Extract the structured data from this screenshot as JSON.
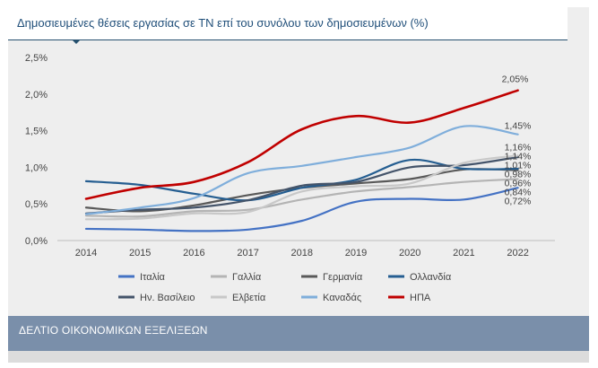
{
  "header": {
    "title": "Δημοσιευμένες θέσεις εργασίας σε ΤΝ επί του συνόλου των δημοσιευμένων (%)"
  },
  "footer": {
    "label": "ΔΕΛΤΙΟ ΟΙΚΟΝΟΜΙΚΩΝ ΕΞΕΛΙΞΕΩΝ"
  },
  "chart_data": {
    "type": "line",
    "title": "Δημοσιευμένες θέσεις εργασίας σε ΤΝ επί του συνόλου των δημοσιευμένων (%)",
    "xlabel": "",
    "ylabel": "",
    "categories": [
      "2014",
      "2015",
      "2016",
      "2017",
      "2018",
      "2019",
      "2020",
      "2021",
      "2022"
    ],
    "ylim": [
      0,
      2.5
    ],
    "yticks": [
      "0,0%",
      "0,5%",
      "1,0%",
      "1,5%",
      "2,0%",
      "2,5%"
    ],
    "grid": false,
    "legend_position": "bottom",
    "series": [
      {
        "name": "Ιταλία",
        "color": "#4472c4",
        "values": [
          0.16,
          0.15,
          0.13,
          0.15,
          0.27,
          0.53,
          0.57,
          0.56,
          0.72
        ],
        "end_label": "0,72%"
      },
      {
        "name": "Γαλλία",
        "color": "#b4b4b4",
        "values": [
          0.34,
          0.33,
          0.4,
          0.42,
          0.56,
          0.67,
          0.73,
          0.8,
          0.84
        ],
        "end_label": "0,84%"
      },
      {
        "name": "Γερμανία",
        "color": "#595959",
        "values": [
          0.45,
          0.4,
          0.48,
          0.62,
          0.72,
          0.78,
          0.84,
          0.97,
          0.96
        ],
        "end_label": "0,96%"
      },
      {
        "name": "Ολλανδία",
        "color": "#255e91",
        "values": [
          0.81,
          0.76,
          0.64,
          0.55,
          0.72,
          0.83,
          1.1,
          0.98,
          0.98
        ],
        "end_label": "0,98%"
      },
      {
        "name": "Ην. Βασίλειο",
        "color": "#44546a",
        "values": [
          0.37,
          0.42,
          0.45,
          0.55,
          0.75,
          0.8,
          1.0,
          1.03,
          1.14
        ],
        "end_label": "1,14%"
      },
      {
        "name": "Ελβετία",
        "color": "#c8c8c8",
        "values": [
          0.29,
          0.3,
          0.37,
          0.39,
          0.67,
          0.74,
          0.78,
          1.06,
          1.16
        ],
        "end_label": "1,16%"
      },
      {
        "name": "Καναδάς",
        "color": "#7faedb",
        "values": [
          0.36,
          0.45,
          0.58,
          0.92,
          1.02,
          1.14,
          1.27,
          1.56,
          1.45
        ],
        "end_label": "1,45%"
      },
      {
        "name": "ΗΠΑ",
        "color": "#c00000",
        "values": [
          0.57,
          0.72,
          0.8,
          1.07,
          1.52,
          1.7,
          1.61,
          1.81,
          2.05
        ],
        "end_label": "2,05%"
      }
    ],
    "extra_labels": [
      "1,01%"
    ]
  }
}
